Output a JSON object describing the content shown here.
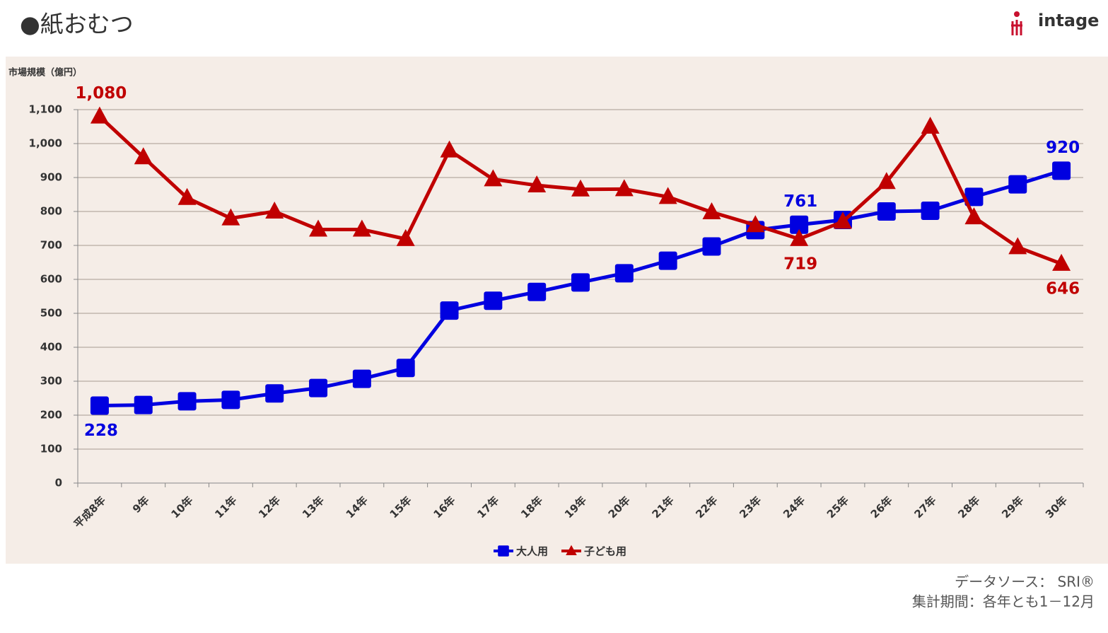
{
  "header": {
    "title": "●紙おむつ",
    "logo": "intage"
  },
  "footer": {
    "source": "データソース： SRI®",
    "period": "集計期間：各年とも1－12月"
  },
  "chart_data": {
    "type": "line",
    "y_label": "市場規模（億円）",
    "categories": [
      "平成8年",
      "9年",
      "10年",
      "11年",
      "12年",
      "13年",
      "14年",
      "15年",
      "16年",
      "17年",
      "18年",
      "19年",
      "20年",
      "21年",
      "22年",
      "23年",
      "24年",
      "25年",
      "26年",
      "27年",
      "28年",
      "29年",
      "30年"
    ],
    "series": [
      {
        "name": "大人用",
        "color": "#0000e0",
        "marker": "square",
        "values": [
          228,
          230,
          241,
          245,
          264,
          280,
          307,
          339,
          508,
          537,
          563,
          591,
          618,
          655,
          697,
          745,
          761,
          775,
          800,
          802,
          843,
          880,
          920
        ],
        "value_labels": [
          "228",
          null,
          null,
          null,
          null,
          null,
          null,
          null,
          null,
          null,
          null,
          null,
          null,
          null,
          null,
          null,
          "761",
          null,
          null,
          null,
          null,
          null,
          "920"
        ]
      },
      {
        "name": "子ども用",
        "color": "#c00000",
        "marker": "triangle",
        "values": [
          1080,
          960,
          840,
          780,
          800,
          747,
          747,
          719,
          980,
          895,
          877,
          865,
          866,
          843,
          798,
          760,
          719,
          770,
          887,
          1050,
          783,
          695,
          646
        ],
        "value_labels": [
          "1,080",
          null,
          null,
          null,
          null,
          null,
          null,
          null,
          null,
          null,
          null,
          null,
          null,
          null,
          null,
          null,
          "719",
          null,
          null,
          null,
          null,
          null,
          "646"
        ]
      }
    ],
    "ylim": [
      0,
      1100
    ],
    "yticks": [
      0,
      100,
      200,
      300,
      400,
      500,
      600,
      700,
      800,
      900,
      {
        "value": 1000,
        "label": "1,000"
      },
      {
        "value": 1100,
        "label": "1,100"
      }
    ],
    "grid": true
  }
}
